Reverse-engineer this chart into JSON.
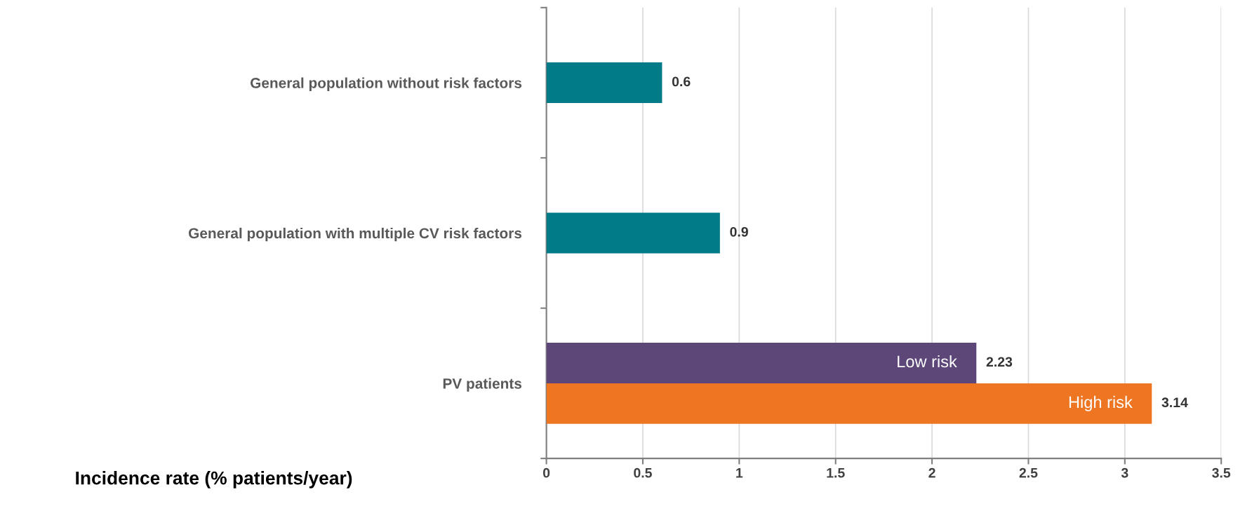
{
  "chart_data": {
    "type": "bar",
    "orientation": "horizontal",
    "xlabel": "Incidence rate (% patients/year)",
    "categories": [
      "General population without risk factors",
      "General population with multiple CV risk factors",
      "PV patients"
    ],
    "series": [
      {
        "color": "#007b87",
        "values": [
          0.6,
          0.9,
          null
        ]
      },
      {
        "name": "Low risk",
        "color": "#5c4778",
        "values": [
          null,
          null,
          2.23
        ]
      },
      {
        "name": "High risk",
        "color": "#ee7623",
        "values": [
          null,
          null,
          3.14
        ]
      }
    ],
    "xlim": [
      0,
      3.5
    ],
    "xticks": [
      0,
      0.5,
      1,
      1.5,
      2,
      2.5,
      3,
      3.5
    ],
    "grid": "x",
    "legend": false,
    "data_labels": true
  }
}
